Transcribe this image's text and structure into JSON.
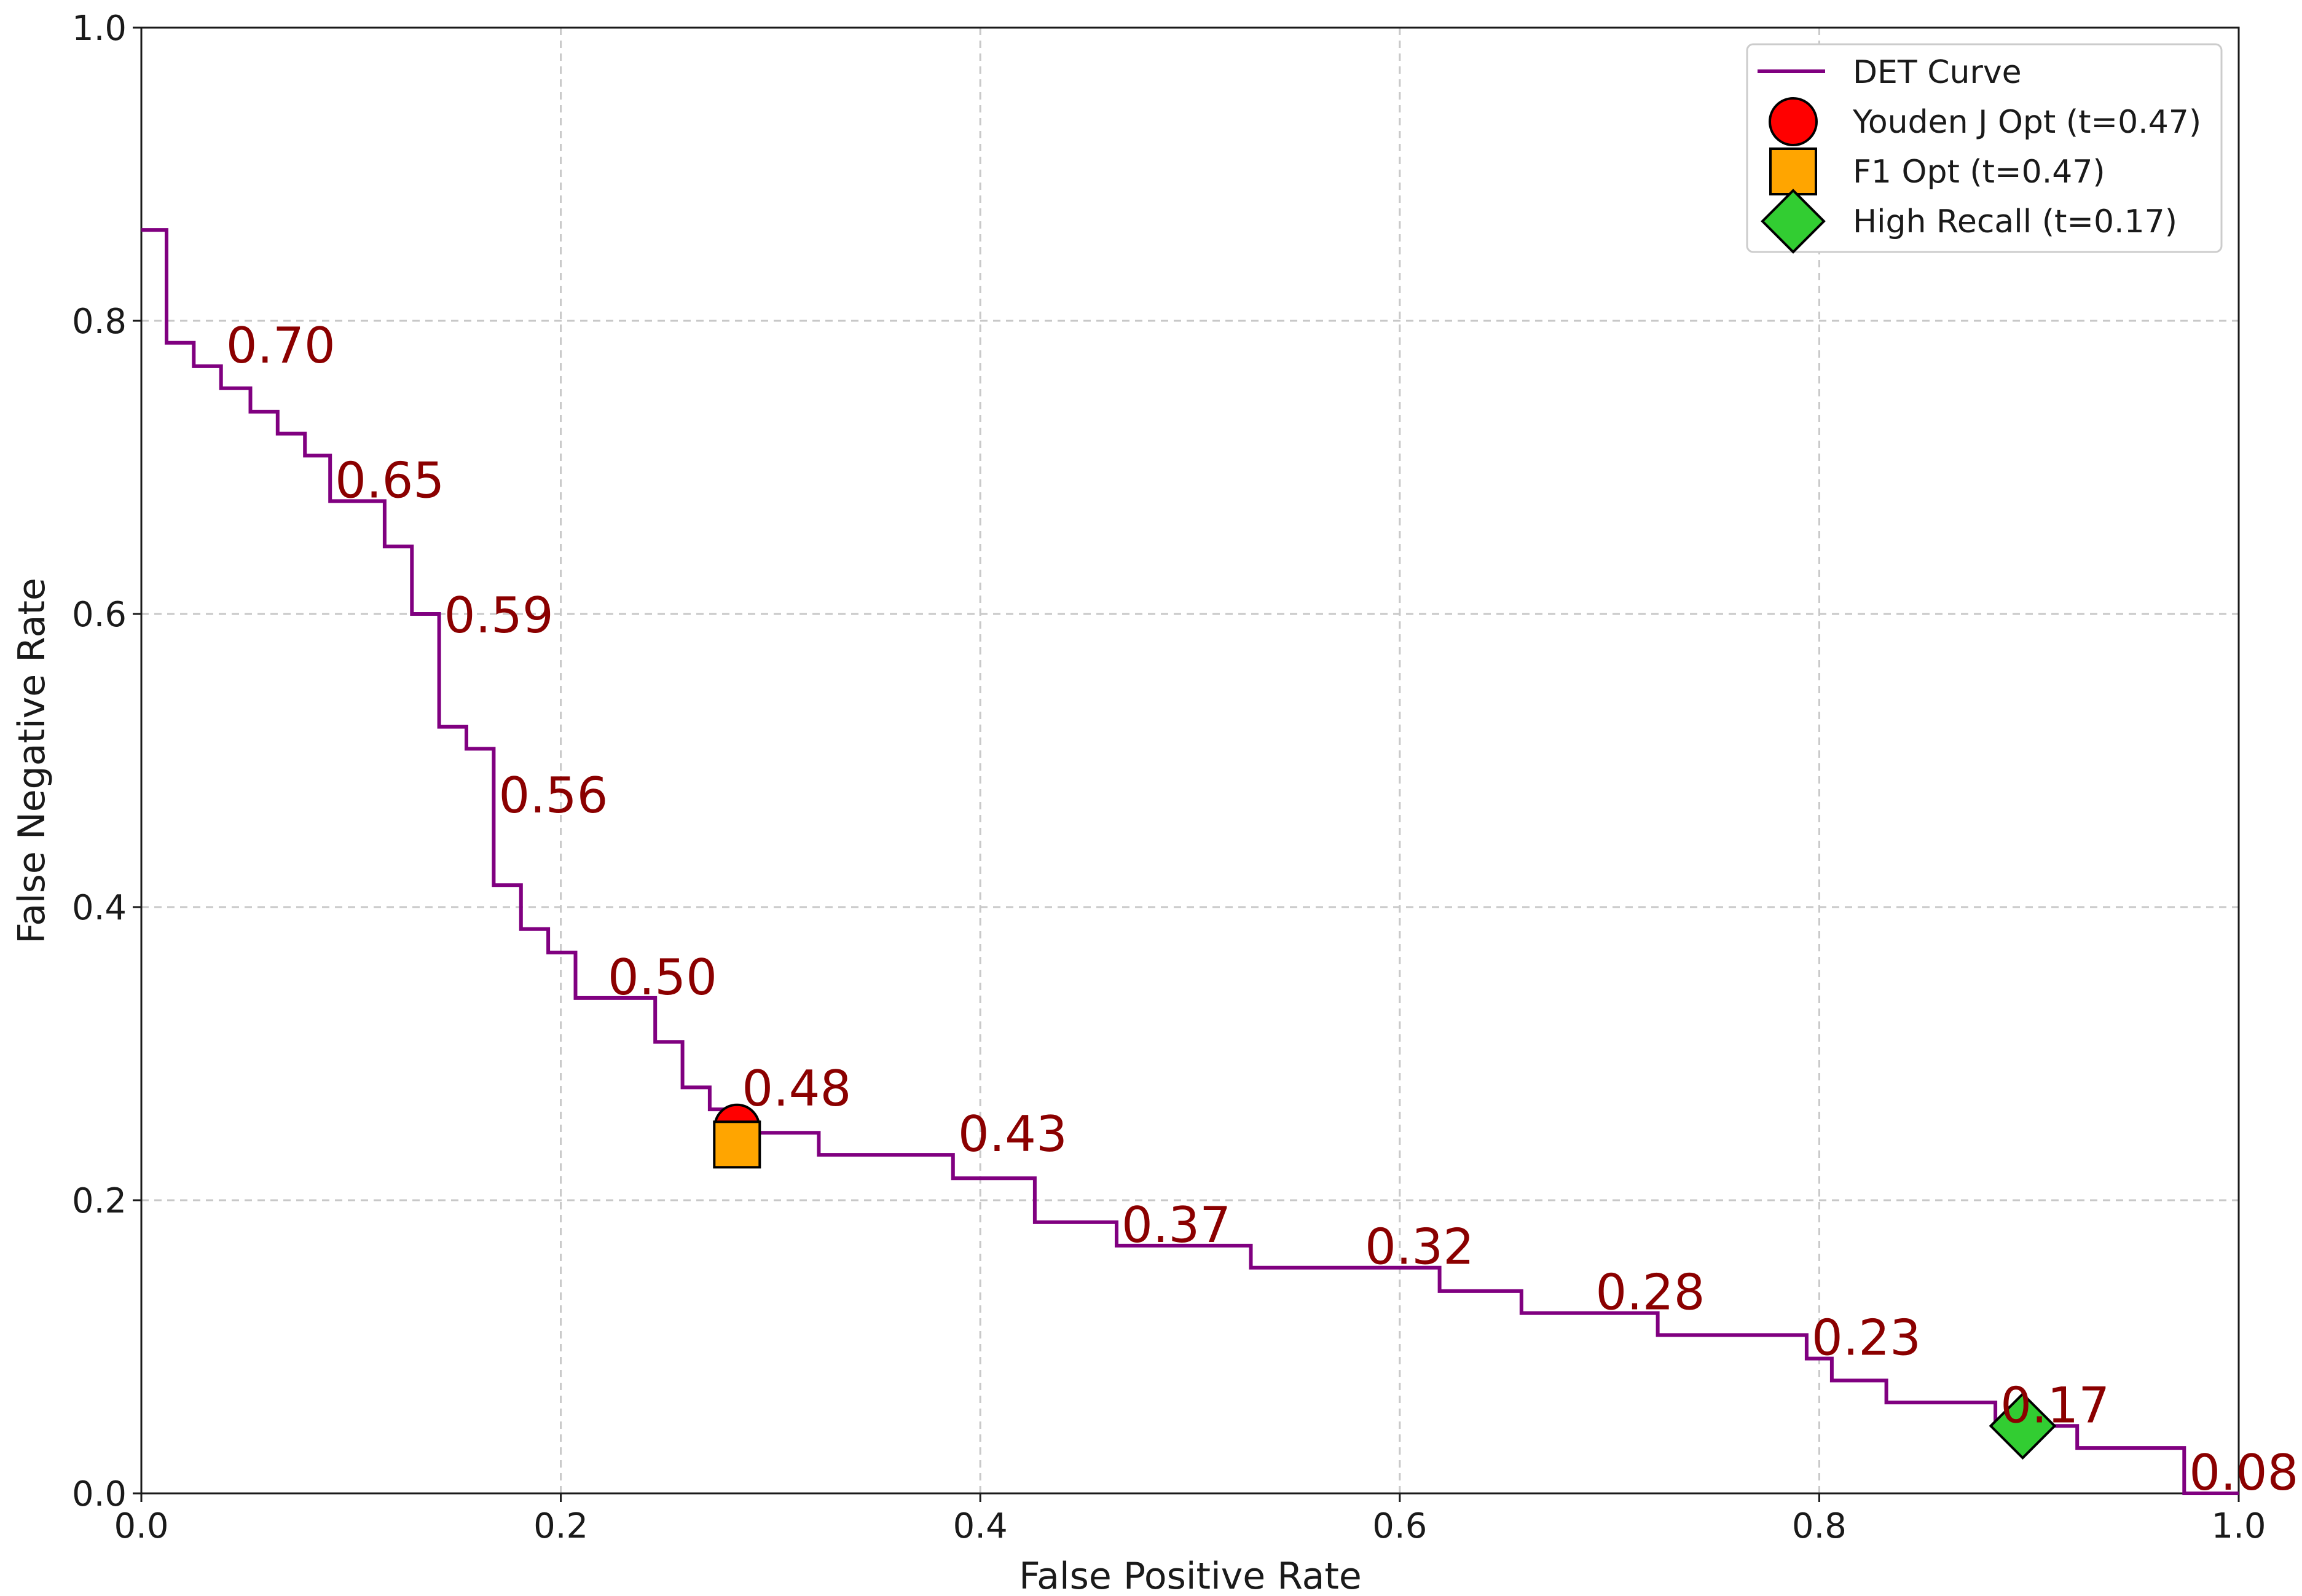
{
  "chart_data": {
    "type": "line",
    "title": "",
    "xlabel": "False Positive Rate",
    "ylabel": "False Negative Rate",
    "xlim": [
      0.0,
      1.0
    ],
    "ylim": [
      0.0,
      1.0
    ],
    "grid": true,
    "xticks": [
      0.0,
      0.2,
      0.4,
      0.6,
      0.8,
      1.0
    ],
    "yticks": [
      0.0,
      0.2,
      0.4,
      0.6,
      0.8,
      1.0
    ],
    "xtick_labels": [
      "0.0",
      "0.2",
      "0.4",
      "0.6",
      "0.8",
      "1.0"
    ],
    "ytick_labels": [
      "0.0",
      "0.2",
      "0.4",
      "0.6",
      "0.8",
      "1.0"
    ],
    "legend_position": "top-right",
    "colors": {
      "curve": "#800080",
      "threshold_label": "#8b0000",
      "youden": "#ff0000",
      "f1": "#ffa500",
      "high_recall": "#32cd32",
      "marker_edge": "#000000"
    },
    "series": [
      {
        "name": "DET Curve",
        "style": "step",
        "points": [
          [
            0.0,
            0.862
          ],
          [
            0.012,
            0.862
          ],
          [
            0.012,
            0.785
          ],
          [
            0.025,
            0.785
          ],
          [
            0.025,
            0.769
          ],
          [
            0.038,
            0.769
          ],
          [
            0.038,
            0.754
          ],
          [
            0.052,
            0.754
          ],
          [
            0.052,
            0.738
          ],
          [
            0.065,
            0.738
          ],
          [
            0.065,
            0.723
          ],
          [
            0.078,
            0.723
          ],
          [
            0.078,
            0.708
          ],
          [
            0.09,
            0.708
          ],
          [
            0.09,
            0.677
          ],
          [
            0.116,
            0.677
          ],
          [
            0.116,
            0.646
          ],
          [
            0.129,
            0.646
          ],
          [
            0.129,
            0.6
          ],
          [
            0.142,
            0.6
          ],
          [
            0.142,
            0.523
          ],
          [
            0.155,
            0.523
          ],
          [
            0.155,
            0.508
          ],
          [
            0.168,
            0.508
          ],
          [
            0.168,
            0.415
          ],
          [
            0.181,
            0.415
          ],
          [
            0.181,
            0.385
          ],
          [
            0.194,
            0.385
          ],
          [
            0.194,
            0.369
          ],
          [
            0.207,
            0.369
          ],
          [
            0.207,
            0.338
          ],
          [
            0.245,
            0.338
          ],
          [
            0.245,
            0.308
          ],
          [
            0.258,
            0.308
          ],
          [
            0.258,
            0.277
          ],
          [
            0.271,
            0.277
          ],
          [
            0.271,
            0.262
          ],
          [
            0.284,
            0.262
          ],
          [
            0.284,
            0.246
          ],
          [
            0.323,
            0.246
          ],
          [
            0.323,
            0.231
          ],
          [
            0.387,
            0.231
          ],
          [
            0.387,
            0.215
          ],
          [
            0.426,
            0.215
          ],
          [
            0.426,
            0.185
          ],
          [
            0.465,
            0.185
          ],
          [
            0.465,
            0.169
          ],
          [
            0.529,
            0.169
          ],
          [
            0.529,
            0.154
          ],
          [
            0.619,
            0.154
          ],
          [
            0.619,
            0.138
          ],
          [
            0.658,
            0.138
          ],
          [
            0.658,
            0.123
          ],
          [
            0.723,
            0.123
          ],
          [
            0.723,
            0.108
          ],
          [
            0.794,
            0.108
          ],
          [
            0.794,
            0.092
          ],
          [
            0.806,
            0.092
          ],
          [
            0.806,
            0.077
          ],
          [
            0.832,
            0.077
          ],
          [
            0.832,
            0.062
          ],
          [
            0.884,
            0.062
          ],
          [
            0.884,
            0.046
          ],
          [
            0.923,
            0.046
          ],
          [
            0.923,
            0.031
          ],
          [
            0.974,
            0.031
          ],
          [
            0.974,
            0.0
          ],
          [
            1.0,
            0.0
          ]
        ]
      }
    ],
    "markers": [
      {
        "name": "Youden J Opt (t=0.47)",
        "shape": "circle",
        "x": 0.284,
        "y": 0.25
      },
      {
        "name": "F1 Opt (t=0.47)",
        "shape": "square",
        "x": 0.284,
        "y": 0.238
      },
      {
        "name": "High Recall (t=0.17)",
        "shape": "diamond",
        "x": 0.897,
        "y": 0.046
      }
    ],
    "threshold_annotations": [
      {
        "text": "0.70",
        "x": 0.038,
        "y": 0.769
      },
      {
        "text": "0.65",
        "x": 0.09,
        "y": 0.677
      },
      {
        "text": "0.59",
        "x": 0.142,
        "y": 0.585
      },
      {
        "text": "0.56",
        "x": 0.168,
        "y": 0.462
      },
      {
        "text": "0.50",
        "x": 0.22,
        "y": 0.338
      },
      {
        "text": "0.48",
        "x": 0.284,
        "y": 0.262
      },
      {
        "text": "0.43",
        "x": 0.387,
        "y": 0.231
      },
      {
        "text": "0.37",
        "x": 0.465,
        "y": 0.169
      },
      {
        "text": "0.32",
        "x": 0.581,
        "y": 0.154
      },
      {
        "text": "0.28",
        "x": 0.691,
        "y": 0.123
      },
      {
        "text": "0.23",
        "x": 0.794,
        "y": 0.092
      },
      {
        "text": "0.17",
        "x": 0.884,
        "y": 0.046
      },
      {
        "text": "0.08",
        "x": 0.974,
        "y": 0.0
      }
    ]
  }
}
